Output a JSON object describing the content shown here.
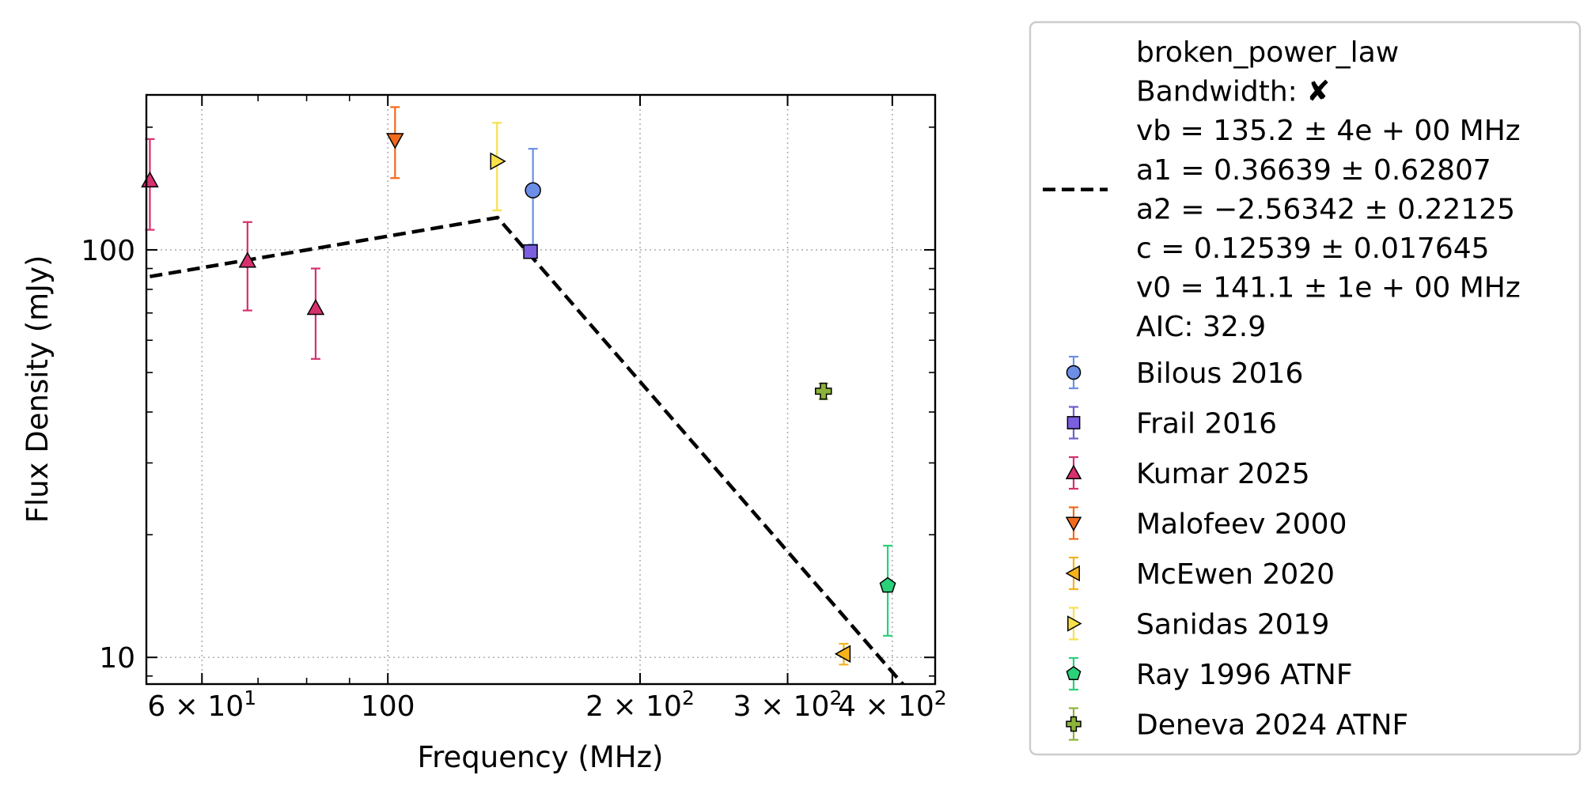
{
  "chart_data": {
    "type": "scatter",
    "xlabel": "Frequency (MHz)",
    "ylabel": "Flux Density (mJy)",
    "xscale": "log",
    "yscale": "log",
    "xlim": [
      51.5,
      450
    ],
    "ylim": [
      8.6,
      240
    ],
    "grid": true,
    "legend_position": "outside-right",
    "x_ticks": [
      {
        "value": 60,
        "base": "6",
        "exp": "1"
      },
      {
        "value": 100,
        "label": "100"
      },
      {
        "value": 200,
        "base": "2",
        "exp": "2"
      },
      {
        "value": 300,
        "base": "3",
        "exp": "2"
      },
      {
        "value": 400,
        "base": "4",
        "exp": "2"
      }
    ],
    "y_ticks": [
      {
        "value": 10,
        "label": "10"
      },
      {
        "value": 100,
        "label": "100"
      }
    ],
    "fit": {
      "name": "broken_power_law",
      "color": "#000000",
      "x": [
        52,
        135.2,
        420
      ],
      "y": [
        86,
        120,
        8.2
      ],
      "legend_lines": [
        "broken_power_law",
        "Bandwidth: ✘",
        "vb = 135.2 ± 4e + 00 MHz",
        "a1 = 0.36639 ± 0.62807",
        "a2 = −2.56342 ± 0.22125",
        "c = 0.12539 ± 0.017645",
        "v0 = 141.1 ± 1e + 00 MHz",
        "AIC: 32.9"
      ]
    },
    "series": [
      {
        "name": "Bilous 2016",
        "marker": "circle",
        "color": "#6b8fe6",
        "err_color": "#6b8fe6",
        "points": [
          {
            "x": 149,
            "y": 140,
            "ylo": 103,
            "yhi": 177
          }
        ]
      },
      {
        "name": "Frail 2016",
        "marker": "square",
        "color": "#7b5fe0",
        "err_color": "#6b5fd0",
        "points": [
          {
            "x": 148,
            "y": 99,
            "ylo": 99,
            "yhi": 99
          }
        ]
      },
      {
        "name": "Kumar 2025",
        "marker": "triangle-up",
        "color": "#d6306f",
        "err_color": "#d6306f",
        "points": [
          {
            "x": 52,
            "y": 148,
            "ylo": 112,
            "yhi": 187
          },
          {
            "x": 68,
            "y": 94,
            "ylo": 71,
            "yhi": 117
          },
          {
            "x": 82,
            "y": 72,
            "ylo": 54,
            "yhi": 90
          }
        ]
      },
      {
        "name": "Malofeev 2000",
        "marker": "triangle-down",
        "color": "#f26a1b",
        "err_color": "#f26a1b",
        "points": [
          {
            "x": 102,
            "y": 186,
            "ylo": 150,
            "yhi": 224
          }
        ]
      },
      {
        "name": "McEwen 2020",
        "marker": "triangle-left",
        "color": "#f5b21b",
        "err_color": "#f5b21b",
        "points": [
          {
            "x": 350,
            "y": 10.2,
            "ylo": 9.6,
            "yhi": 10.8
          }
        ]
      },
      {
        "name": "Sanidas 2019",
        "marker": "triangle-right",
        "color": "#f7e04a",
        "err_color": "#f7e04a",
        "points": [
          {
            "x": 135,
            "y": 165,
            "ylo": 125,
            "yhi": 205
          }
        ]
      },
      {
        "name": "Ray 1996 ATNF",
        "marker": "pentagon",
        "color": "#29d17a",
        "err_color": "#29d17a",
        "points": [
          {
            "x": 395,
            "y": 15,
            "ylo": 11.3,
            "yhi": 18.8
          }
        ]
      },
      {
        "name": "Deneva 2024 ATNF",
        "marker": "plus",
        "color": "#8db33a",
        "err_color": "#8db33a",
        "points": [
          {
            "x": 331,
            "y": 45,
            "ylo": 43,
            "yhi": 47
          }
        ]
      }
    ]
  }
}
